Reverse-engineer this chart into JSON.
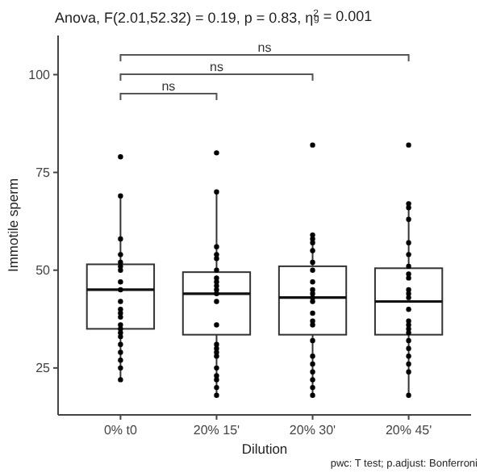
{
  "chart_data": {
    "type": "box",
    "title": "Anova, F(2.01,52.32) = 0.19, p = 0.83, η$^{2}$$_{g}$ = 0.001",
    "xlabel": "Dilution",
    "ylabel": "Immotile sperm",
    "categories": [
      "0% t0",
      "20% 15'",
      "20% 30'",
      "20% 45'"
    ],
    "boxes": [
      {
        "low": 22,
        "q1": 35,
        "q3": 51.5,
        "median": 45,
        "high": 69
      },
      {
        "low": 18,
        "q1": 33.5,
        "q3": 49.5,
        "median": 44,
        "high": 70
      },
      {
        "low": 18,
        "q1": 33.5,
        "q3": 51,
        "median": 43,
        "high": 59
      },
      {
        "low": 18,
        "q1": 33.5,
        "q3": 50.5,
        "median": 42,
        "high": 67
      }
    ],
    "series": [
      {
        "type": "scatter",
        "color": "#000000",
        "x": [
          "0% t0",
          "0% t0",
          "0% t0",
          "0% t0",
          "0% t0",
          "0% t0",
          "0% t0",
          "0% t0",
          "0% t0",
          "0% t0",
          "0% t0",
          "0% t0",
          "0% t0",
          "0% t0",
          "0% t0",
          "0% t0",
          "0% t0",
          "0% t0",
          "0% t0",
          "0% t0",
          "0% t0",
          "0% t0",
          "20% 15'",
          "20% 15'",
          "20% 15'",
          "20% 15'",
          "20% 15'",
          "20% 15'",
          "20% 15'",
          "20% 15'",
          "20% 15'",
          "20% 15'",
          "20% 15'",
          "20% 15'",
          "20% 15'",
          "20% 15'",
          "20% 15'",
          "20% 15'",
          "20% 15'",
          "20% 15'",
          "20% 15'",
          "20% 15'",
          "20% 15'",
          "20% 15'",
          "20% 30'",
          "20% 30'",
          "20% 30'",
          "20% 30'",
          "20% 30'",
          "20% 30'",
          "20% 30'",
          "20% 30'",
          "20% 30'",
          "20% 30'",
          "20% 30'",
          "20% 30'",
          "20% 30'",
          "20% 30'",
          "20% 30'",
          "20% 30'",
          "20% 30'",
          "20% 30'",
          "20% 30'",
          "20% 30'",
          "20% 30'",
          "20% 30'",
          "20% 45'",
          "20% 45'",
          "20% 45'",
          "20% 45'",
          "20% 45'",
          "20% 45'",
          "20% 45'",
          "20% 45'",
          "20% 45'",
          "20% 45'",
          "20% 45'",
          "20% 45'",
          "20% 45'",
          "20% 45'",
          "20% 45'",
          "20% 45'",
          "20% 45'",
          "20% 45'",
          "20% 45'",
          "20% 45'",
          "20% 45'",
          "20% 45'",
          "20% 45'"
        ],
        "values": [
          79,
          69,
          58,
          54,
          52,
          51,
          50,
          47,
          45,
          42,
          40,
          39,
          38,
          36,
          35,
          34,
          33,
          31,
          29,
          27,
          25,
          22,
          80,
          70,
          56,
          54,
          53,
          50,
          48,
          47,
          46,
          45,
          44,
          42,
          36,
          31,
          30,
          29,
          28,
          25,
          23,
          22,
          20,
          18,
          82,
          59,
          58,
          57,
          55,
          52,
          50,
          47,
          45,
          44,
          43,
          42,
          39,
          37,
          36,
          32,
          28,
          26,
          24,
          22,
          20,
          18,
          82,
          67,
          66,
          63,
          57,
          54,
          51,
          49,
          48,
          45,
          44,
          43,
          40,
          37,
          36,
          35,
          34,
          32,
          30,
          28,
          26,
          24,
          18
        ]
      }
    ],
    "ylim": [
      13,
      110
    ],
    "yticks": [
      25,
      50,
      75,
      100
    ],
    "annotations": [
      "ns",
      "ns",
      "ns",
      "pwc: T test; p.adjust: Bonferroni"
    ]
  }
}
